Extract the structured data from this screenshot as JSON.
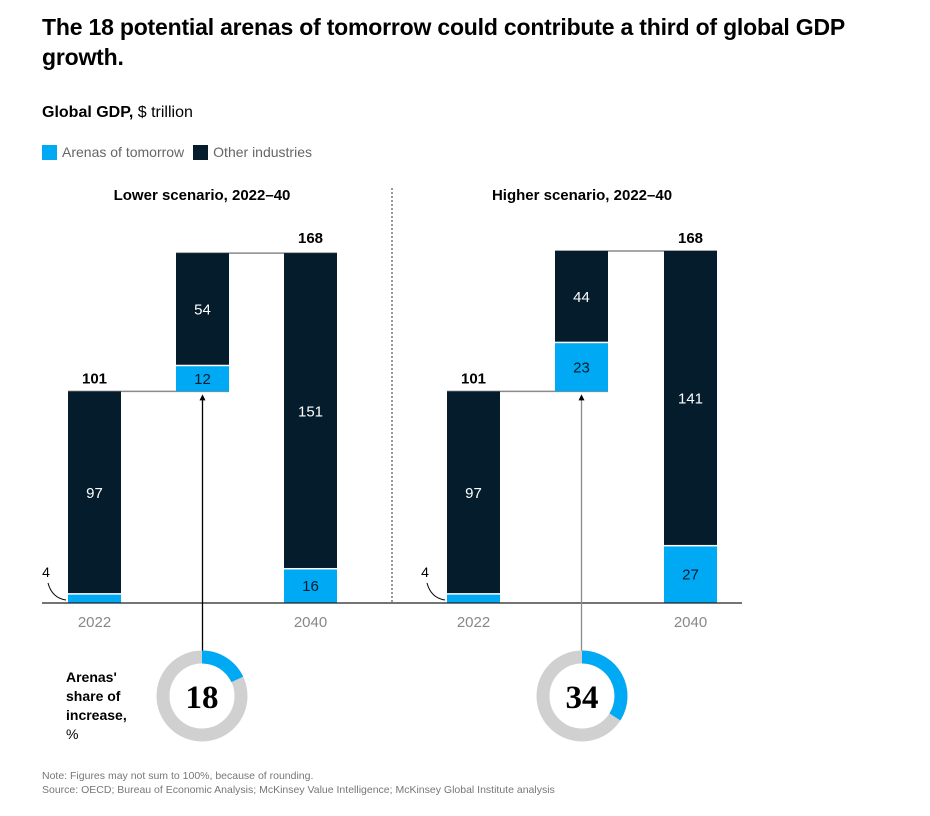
{
  "title": "The 18 potential arenas of tomorrow could contribute a third of global GDP growth.",
  "subtitle_bold": "Global GDP,",
  "subtitle_rest": " $ trillion",
  "legend": [
    {
      "label": "Arenas of tomorrow",
      "color": "#00a9f4"
    },
    {
      "label": "Other industries",
      "color": "#051c2c"
    }
  ],
  "share_label": {
    "lines": [
      "Arenas'",
      "share of",
      "increase,"
    ],
    "unit": "%"
  },
  "notes": {
    "note": "Note: Figures may not sum to 100%, because of rounding.",
    "source": "Source: OECD; Bureau of Economic Analysis; McKinsey Value Intelligence; McKinsey Global Institute analysis"
  },
  "chart_data": [
    {
      "type": "bar",
      "subtype": "waterfall-stacked",
      "title": "Lower scenario, 2022–40",
      "categories": [
        "2022",
        "Increase",
        "2040"
      ],
      "x_tick_labels": [
        "2022",
        "",
        "2040"
      ],
      "series": [
        {
          "name": "Arenas of tomorrow",
          "values": [
            4,
            12,
            16
          ]
        },
        {
          "name": "Other industries",
          "values": [
            97,
            54,
            151
          ]
        }
      ],
      "totals": [
        101,
        null,
        168
      ],
      "increase_base": 101,
      "ylim": [
        0,
        168
      ],
      "arenas_share_of_increase_pct": 18
    },
    {
      "type": "bar",
      "subtype": "waterfall-stacked",
      "title": "Higher scenario, 2022–40",
      "categories": [
        "2022",
        "Increase",
        "2040"
      ],
      "x_tick_labels": [
        "2022",
        "",
        "2040"
      ],
      "series": [
        {
          "name": "Arenas of tomorrow",
          "values": [
            4,
            23,
            27
          ]
        },
        {
          "name": "Other industries",
          "values": [
            97,
            44,
            141
          ]
        }
      ],
      "totals": [
        101,
        null,
        168
      ],
      "increase_base": 101,
      "ylim": [
        0,
        168
      ],
      "arenas_share_of_increase_pct": 34
    }
  ],
  "colors": {
    "arenas": "#00a9f4",
    "other": "#051c2c",
    "donut_bg": "#d0d0d0",
    "connector": "#8a8a8a",
    "axis": "#222222",
    "tick_text": "#888888"
  }
}
